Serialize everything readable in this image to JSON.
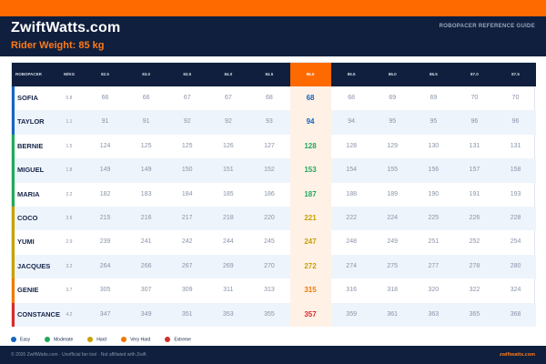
{
  "header": {
    "site_title": "ZwiftWatts.com",
    "rider_weight": "Rider Weight: 85 kg",
    "reference_label": "ROBOPACER REFERENCE GUIDE"
  },
  "table": {
    "name_header": "ROBOPACER",
    "wkg_header": "W/KG",
    "columns": [
      "82.5",
      "83.0",
      "83.5",
      "84.0",
      "84.5",
      "85.0",
      "85.5",
      "86.0",
      "86.5",
      "87.0",
      "87.5"
    ],
    "active_column": "85.0",
    "rows": [
      {
        "name": "SOFIA",
        "wkg": "0.8",
        "level": "Easy",
        "values": [
          "66",
          "66",
          "67",
          "67",
          "68",
          "68",
          "68",
          "69",
          "69",
          "70",
          "70"
        ]
      },
      {
        "name": "TAYLOR",
        "wkg": "1.1",
        "level": "Easy",
        "values": [
          "91",
          "91",
          "92",
          "92",
          "93",
          "94",
          "94",
          "95",
          "95",
          "96",
          "96"
        ]
      },
      {
        "name": "BERNIE",
        "wkg": "1.5",
        "level": "Moderate",
        "values": [
          "124",
          "125",
          "125",
          "126",
          "127",
          "128",
          "128",
          "129",
          "130",
          "131",
          "131"
        ]
      },
      {
        "name": "MIGUEL",
        "wkg": "1.8",
        "level": "Moderate",
        "values": [
          "149",
          "149",
          "150",
          "151",
          "152",
          "153",
          "154",
          "155",
          "156",
          "157",
          "158"
        ]
      },
      {
        "name": "MARIA",
        "wkg": "2.2",
        "level": "Moderate",
        "values": [
          "182",
          "183",
          "184",
          "185",
          "186",
          "187",
          "188",
          "189",
          "190",
          "191",
          "193"
        ]
      },
      {
        "name": "COCO",
        "wkg": "2.6",
        "level": "Hard",
        "values": [
          "215",
          "216",
          "217",
          "218",
          "220",
          "221",
          "222",
          "224",
          "225",
          "226",
          "228"
        ]
      },
      {
        "name": "YUMI",
        "wkg": "2.9",
        "level": "Hard",
        "values": [
          "239",
          "241",
          "242",
          "244",
          "245",
          "247",
          "248",
          "249",
          "251",
          "252",
          "254"
        ]
      },
      {
        "name": "JACQUES",
        "wkg": "3.2",
        "level": "Hard",
        "values": [
          "264",
          "266",
          "267",
          "269",
          "270",
          "272",
          "274",
          "275",
          "277",
          "278",
          "280"
        ]
      },
      {
        "name": "GENIE",
        "wkg": "3.7",
        "level": "Very Hard",
        "values": [
          "305",
          "307",
          "309",
          "311",
          "313",
          "315",
          "316",
          "318",
          "320",
          "322",
          "324"
        ]
      },
      {
        "name": "CONSTANCE",
        "wkg": "4.2",
        "level": "Extreme",
        "values": [
          "347",
          "349",
          "351",
          "353",
          "355",
          "357",
          "359",
          "361",
          "363",
          "365",
          "368"
        ]
      }
    ]
  },
  "legend": [
    {
      "label": "Easy",
      "color": "#1565c0"
    },
    {
      "label": "Moderate",
      "color": "#1faa59"
    },
    {
      "label": "Hard",
      "color": "#c9a000"
    },
    {
      "label": "Very Hard",
      "color": "#f07800"
    },
    {
      "label": "Extreme",
      "color": "#d62c2c"
    }
  ],
  "footer": {
    "left": "© 2026 ZwiftWatts.com · Unofficial fan tool · Not affiliated with Zwift",
    "right": "zwiftwatts.com"
  }
}
